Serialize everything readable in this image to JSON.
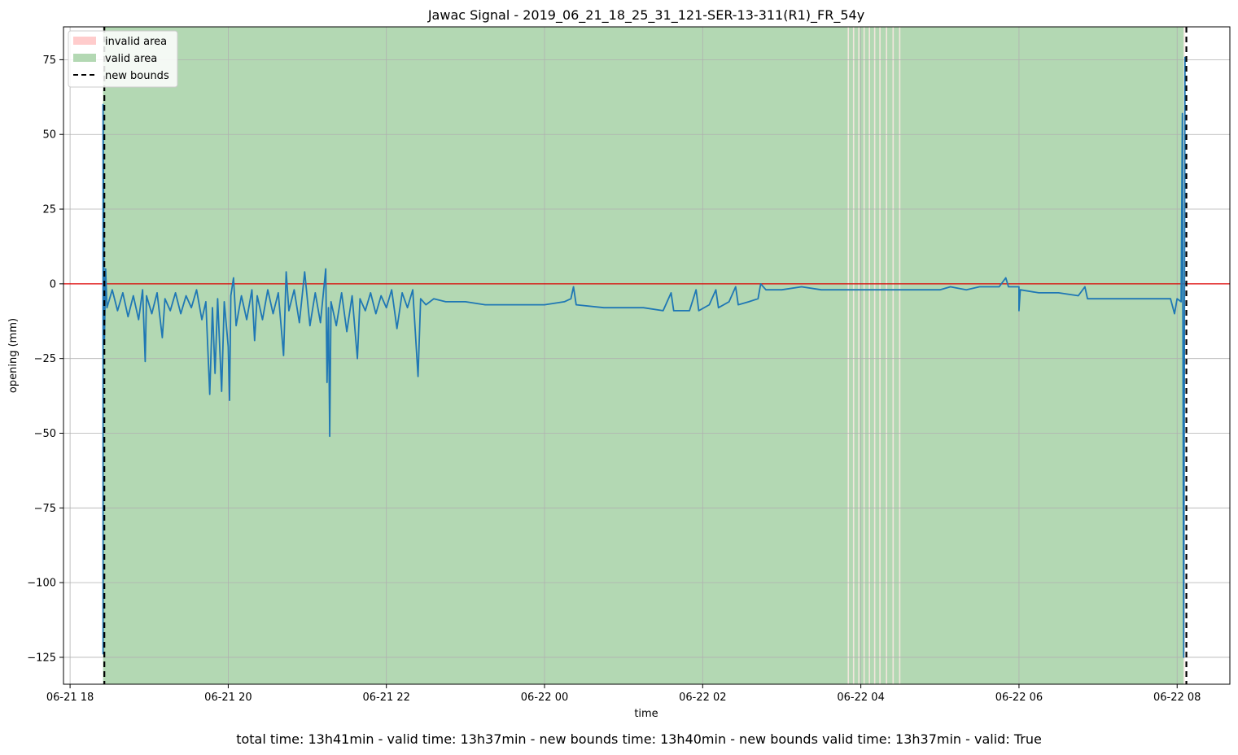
{
  "chart_data": {
    "type": "line",
    "title": "Jawac Signal - 2019_06_21_18_25_31_121-SER-13-311(R1)_FR_54y",
    "xlabel": "time",
    "ylabel": "opening (mm)",
    "xlim": [
      "2019-06-21 17:55",
      "2019-06-22 08:40"
    ],
    "ylim": [
      -134,
      86
    ],
    "x_ticks": [
      {
        "t": "2019-06-21 18:00",
        "label": "06-21 18"
      },
      {
        "t": "2019-06-21 20:00",
        "label": "06-21 20"
      },
      {
        "t": "2019-06-21 22:00",
        "label": "06-21 22"
      },
      {
        "t": "2019-06-22 00:00",
        "label": "06-22 00"
      },
      {
        "t": "2019-06-22 02:00",
        "label": "06-22 02"
      },
      {
        "t": "2019-06-22 04:00",
        "label": "06-22 04"
      },
      {
        "t": "2019-06-22 06:00",
        "label": "06-22 06"
      },
      {
        "t": "2019-06-22 08:00",
        "label": "06-22 08"
      }
    ],
    "y_ticks": [
      {
        "v": 75,
        "label": "75"
      },
      {
        "v": 50,
        "label": "50"
      },
      {
        "v": 25,
        "label": "25"
      },
      {
        "v": 0,
        "label": "0"
      },
      {
        "v": -25,
        "label": "−25"
      },
      {
        "v": -50,
        "label": "−50"
      },
      {
        "v": -75,
        "label": "−75"
      },
      {
        "v": -100,
        "label": "−100"
      },
      {
        "v": -125,
        "label": "−125"
      }
    ],
    "grid": true,
    "legend_position": "upper-left",
    "legend": [
      {
        "label": "invalid area",
        "kind": "patch",
        "color": "#ffcccc"
      },
      {
        "label": "valid area",
        "kind": "patch",
        "color": "#b3d8b3"
      },
      {
        "label": "new bounds",
        "kind": "dashed",
        "color": "#000000"
      }
    ],
    "reference_line": {
      "y": 0,
      "color": "#dd0000"
    },
    "valid_area": {
      "start": "2019-06-21 18:25",
      "end": "2019-06-22 08:05",
      "color": "#b3d8b3"
    },
    "invalid_areas": [
      {
        "start": "2019-06-22 08:05",
        "end": "2019-06-22 08:06"
      },
      {
        "start": "2019-06-22 03:50",
        "end": "2019-06-22 03:51"
      },
      {
        "start": "2019-06-22 03:54",
        "end": "2019-06-22 03:55"
      },
      {
        "start": "2019-06-22 03:58",
        "end": "2019-06-22 03:59"
      },
      {
        "start": "2019-06-22 04:02",
        "end": "2019-06-22 04:03"
      },
      {
        "start": "2019-06-22 04:06",
        "end": "2019-06-22 04:07"
      },
      {
        "start": "2019-06-22 04:10",
        "end": "2019-06-22 04:11"
      },
      {
        "start": "2019-06-22 04:14",
        "end": "2019-06-22 04:15"
      },
      {
        "start": "2019-06-22 04:19",
        "end": "2019-06-22 04:20"
      },
      {
        "start": "2019-06-22 04:24",
        "end": "2019-06-22 04:25"
      },
      {
        "start": "2019-06-22 04:29",
        "end": "2019-06-22 04:30"
      }
    ],
    "new_bounds": [
      "2019-06-21 18:26",
      "2019-06-22 08:07"
    ],
    "series": [
      {
        "color": "#1f77b4",
        "points": [
          [
            "2019-06-21 18:25",
            -124
          ],
          [
            "2019-06-21 18:25",
            60
          ],
          [
            "2019-06-21 18:26",
            -20
          ],
          [
            "2019-06-21 18:27",
            5
          ],
          [
            "2019-06-21 18:28",
            -8
          ],
          [
            "2019-06-21 18:32",
            -2
          ],
          [
            "2019-06-21 18:36",
            -9
          ],
          [
            "2019-06-21 18:40",
            -3
          ],
          [
            "2019-06-21 18:44",
            -11
          ],
          [
            "2019-06-21 18:48",
            -4
          ],
          [
            "2019-06-21 18:52",
            -12
          ],
          [
            "2019-06-21 18:55",
            -2
          ],
          [
            "2019-06-21 18:57",
            -26
          ],
          [
            "2019-06-21 18:58",
            -4
          ],
          [
            "2019-06-21 19:02",
            -10
          ],
          [
            "2019-06-21 19:06",
            -3
          ],
          [
            "2019-06-21 19:10",
            -18
          ],
          [
            "2019-06-21 19:12",
            -5
          ],
          [
            "2019-06-21 19:16",
            -9
          ],
          [
            "2019-06-21 19:20",
            -3
          ],
          [
            "2019-06-21 19:24",
            -10
          ],
          [
            "2019-06-21 19:28",
            -4
          ],
          [
            "2019-06-21 19:32",
            -8
          ],
          [
            "2019-06-21 19:36",
            -2
          ],
          [
            "2019-06-21 19:40",
            -12
          ],
          [
            "2019-06-21 19:43",
            -6
          ],
          [
            "2019-06-21 19:46",
            -37
          ],
          [
            "2019-06-21 19:48",
            -8
          ],
          [
            "2019-06-21 19:50",
            -30
          ],
          [
            "2019-06-21 19:52",
            -5
          ],
          [
            "2019-06-21 19:55",
            -36
          ],
          [
            "2019-06-21 19:57",
            -6
          ],
          [
            "2019-06-21 20:00",
            -21
          ],
          [
            "2019-06-21 20:01",
            -39
          ],
          [
            "2019-06-21 20:02",
            -4
          ],
          [
            "2019-06-21 20:04",
            2
          ],
          [
            "2019-06-21 20:06",
            -14
          ],
          [
            "2019-06-21 20:10",
            -4
          ],
          [
            "2019-06-21 20:14",
            -12
          ],
          [
            "2019-06-21 20:18",
            -2
          ],
          [
            "2019-06-21 20:20",
            -19
          ],
          [
            "2019-06-21 20:22",
            -4
          ],
          [
            "2019-06-21 20:26",
            -12
          ],
          [
            "2019-06-21 20:30",
            -2
          ],
          [
            "2019-06-21 20:34",
            -10
          ],
          [
            "2019-06-21 20:38",
            -3
          ],
          [
            "2019-06-21 20:42",
            -24
          ],
          [
            "2019-06-21 20:44",
            4
          ],
          [
            "2019-06-21 20:46",
            -9
          ],
          [
            "2019-06-21 20:50",
            -2
          ],
          [
            "2019-06-21 20:54",
            -13
          ],
          [
            "2019-06-21 20:58",
            4
          ],
          [
            "2019-06-21 21:02",
            -14
          ],
          [
            "2019-06-21 21:06",
            -3
          ],
          [
            "2019-06-21 21:10",
            -13
          ],
          [
            "2019-06-21 21:14",
            5
          ],
          [
            "2019-06-21 21:15",
            -33
          ],
          [
            "2019-06-21 21:16",
            -8
          ],
          [
            "2019-06-21 21:17",
            -51
          ],
          [
            "2019-06-21 21:18",
            -6
          ],
          [
            "2019-06-21 21:22",
            -14
          ],
          [
            "2019-06-21 21:26",
            -3
          ],
          [
            "2019-06-21 21:30",
            -16
          ],
          [
            "2019-06-21 21:34",
            -4
          ],
          [
            "2019-06-21 21:38",
            -25
          ],
          [
            "2019-06-21 21:40",
            -5
          ],
          [
            "2019-06-21 21:44",
            -9
          ],
          [
            "2019-06-21 21:48",
            -3
          ],
          [
            "2019-06-21 21:52",
            -10
          ],
          [
            "2019-06-21 21:56",
            -4
          ],
          [
            "2019-06-21 22:00",
            -8
          ],
          [
            "2019-06-21 22:04",
            -2
          ],
          [
            "2019-06-21 22:08",
            -15
          ],
          [
            "2019-06-21 22:12",
            -3
          ],
          [
            "2019-06-21 22:16",
            -8
          ],
          [
            "2019-06-21 22:20",
            -2
          ],
          [
            "2019-06-21 22:24",
            -31
          ],
          [
            "2019-06-21 22:26",
            -5
          ],
          [
            "2019-06-21 22:30",
            -7
          ],
          [
            "2019-06-21 22:36",
            -5
          ],
          [
            "2019-06-21 22:45",
            -6
          ],
          [
            "2019-06-21 23:00",
            -6
          ],
          [
            "2019-06-21 23:15",
            -7
          ],
          [
            "2019-06-21 23:30",
            -7
          ],
          [
            "2019-06-21 23:45",
            -7
          ],
          [
            "2019-06-22 00:00",
            -7
          ],
          [
            "2019-06-22 00:15",
            -6
          ],
          [
            "2019-06-22 00:20",
            -5
          ],
          [
            "2019-06-22 00:22",
            -1
          ],
          [
            "2019-06-22 00:24",
            -7
          ],
          [
            "2019-06-22 00:45",
            -8
          ],
          [
            "2019-06-22 01:00",
            -8
          ],
          [
            "2019-06-22 01:15",
            -8
          ],
          [
            "2019-06-22 01:30",
            -9
          ],
          [
            "2019-06-22 01:36",
            -3
          ],
          [
            "2019-06-22 01:38",
            -9
          ],
          [
            "2019-06-22 01:50",
            -9
          ],
          [
            "2019-06-22 01:55",
            -2
          ],
          [
            "2019-06-22 01:57",
            -9
          ],
          [
            "2019-06-22 02:05",
            -7
          ],
          [
            "2019-06-22 02:10",
            -2
          ],
          [
            "2019-06-22 02:12",
            -8
          ],
          [
            "2019-06-22 02:20",
            -6
          ],
          [
            "2019-06-22 02:25",
            -1
          ],
          [
            "2019-06-22 02:27",
            -7
          ],
          [
            "2019-06-22 02:35",
            -6
          ],
          [
            "2019-06-22 02:42",
            -5
          ],
          [
            "2019-06-22 02:44",
            0
          ],
          [
            "2019-06-22 02:48",
            -2
          ],
          [
            "2019-06-22 03:00",
            -2
          ],
          [
            "2019-06-22 03:15",
            -1
          ],
          [
            "2019-06-22 03:30",
            -2
          ],
          [
            "2019-06-22 03:45",
            -2
          ],
          [
            "2019-06-22 04:00",
            -2
          ],
          [
            "2019-06-22 04:30",
            -2
          ],
          [
            "2019-06-22 05:00",
            -2
          ],
          [
            "2019-06-22 05:08",
            -1
          ],
          [
            "2019-06-22 05:20",
            -2
          ],
          [
            "2019-06-22 05:30",
            -1
          ],
          [
            "2019-06-22 05:45",
            -1
          ],
          [
            "2019-06-22 05:50",
            2
          ],
          [
            "2019-06-22 05:52",
            -1
          ],
          [
            "2019-06-22 06:00",
            -1
          ],
          [
            "2019-06-22 06:00",
            -9
          ],
          [
            "2019-06-22 06:01",
            -2
          ],
          [
            "2019-06-22 06:15",
            -3
          ],
          [
            "2019-06-22 06:30",
            -3
          ],
          [
            "2019-06-22 06:45",
            -4
          ],
          [
            "2019-06-22 06:50",
            -1
          ],
          [
            "2019-06-22 06:52",
            -5
          ],
          [
            "2019-06-22 07:00",
            -5
          ],
          [
            "2019-06-22 07:15",
            -5
          ],
          [
            "2019-06-22 07:30",
            -5
          ],
          [
            "2019-06-22 07:45",
            -5
          ],
          [
            "2019-06-22 07:55",
            -5
          ],
          [
            "2019-06-22 07:58",
            -10
          ],
          [
            "2019-06-22 08:00",
            -5
          ],
          [
            "2019-06-22 08:03",
            -6
          ],
          [
            "2019-06-22 08:04",
            57
          ],
          [
            "2019-06-22 08:05",
            -125
          ],
          [
            "2019-06-22 08:06",
            76
          ]
        ]
      }
    ]
  },
  "footer": {
    "summary": "total time: 13h41min - valid time: 13h37min - new bounds time: 13h40min - new bounds valid time: 13h37min - valid: True"
  }
}
